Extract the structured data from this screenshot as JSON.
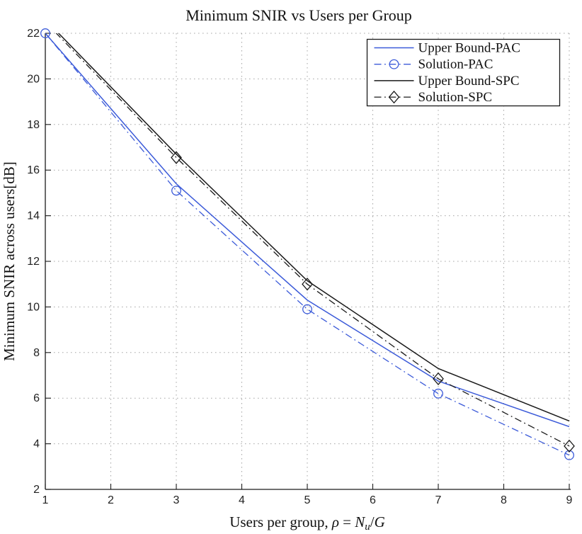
{
  "figure": {
    "background": "#ffffff",
    "grid_color": "#a3a3a3",
    "axis_color": "#1a1a1a"
  },
  "chart_data": {
    "type": "line",
    "title": "Minimum SNIR vs Users per Group",
    "ylabel": "Minimum SNIR across users[dB]",
    "xlabel_parts": [
      {
        "text": "Users per group, ",
        "italic": false,
        "sub": false
      },
      {
        "text": "ρ",
        "italic": true,
        "sub": false
      },
      {
        "text": " = ",
        "italic": false,
        "sub": false
      },
      {
        "text": "N",
        "italic": true,
        "sub": false
      },
      {
        "text": "u",
        "italic": true,
        "sub": true
      },
      {
        "text": "/",
        "italic": false,
        "sub": false
      },
      {
        "text": "G",
        "italic": true,
        "sub": false
      }
    ],
    "x": [
      1,
      3,
      5,
      7,
      9
    ],
    "xlim": [
      1,
      9
    ],
    "ylim": [
      2,
      22
    ],
    "xticks": [
      1,
      2,
      3,
      4,
      5,
      6,
      7,
      8,
      9
    ],
    "yticks": [
      2,
      4,
      6,
      8,
      10,
      12,
      14,
      16,
      18,
      20,
      22
    ],
    "grid": true,
    "legend_position": "top-right",
    "series": [
      {
        "name": "Upper Bound-PAC",
        "color": "#3c5bd9",
        "style": "solid",
        "marker": "none",
        "values": [
          22.0,
          15.4,
          10.3,
          6.75,
          4.75
        ]
      },
      {
        "name": "Solution-PAC",
        "color": "#3c5bd9",
        "style": "dashdot",
        "marker": "circle",
        "values": [
          22.0,
          15.1,
          9.9,
          6.2,
          3.5
        ]
      },
      {
        "name": "Upper Bound-SPC",
        "color": "#1a1a1a",
        "style": "solid",
        "marker": "none",
        "values": [
          22.6,
          16.7,
          11.15,
          7.3,
          5.0
        ]
      },
      {
        "name": "Solution-SPC",
        "color": "#1a1a1a",
        "style": "dashdot",
        "marker": "diamond",
        "values": [
          22.5,
          16.55,
          11.0,
          6.85,
          3.9
        ]
      }
    ]
  }
}
